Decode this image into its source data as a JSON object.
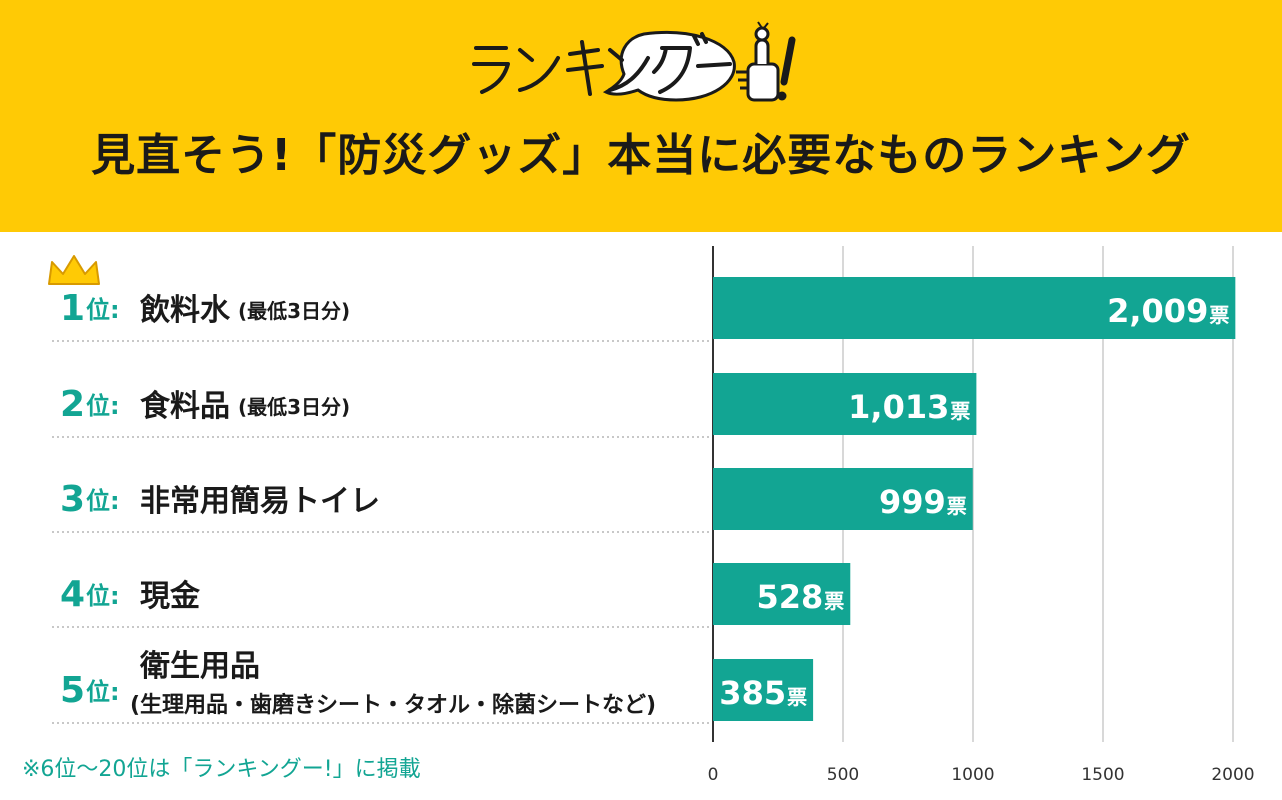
{
  "header": {
    "logo_text": "ランキングー!",
    "title": "見直そう!「防災グッズ」本当に必要なものランキング"
  },
  "colors": {
    "header_bg": "#FFCA05",
    "bar": "#12A593",
    "rank": "#12A593",
    "crown": "#FFCA05",
    "grid": "#cccccc"
  },
  "chart_data": {
    "type": "bar",
    "orientation": "horizontal",
    "categories": [
      "飲料水(最低3日分)",
      "食料品(最低3日分)",
      "非常用簡易トイレ",
      "現金",
      "衛生用品(生理用品・歯磨きシート・タオル・除菌シートなど)"
    ],
    "values": [
      2009,
      1013,
      999,
      528,
      385
    ],
    "value_labels": [
      "2,009",
      "1,013",
      "999",
      "528",
      "385"
    ],
    "value_unit": "票",
    "xlim": [
      0,
      2000
    ],
    "xticks": [
      "0",
      "500",
      "1000",
      "1500",
      "2000"
    ],
    "grid": true,
    "ranks": [
      {
        "num": "1",
        "suffix": "位:",
        "name": "飲料水",
        "note": "(最低3日分)"
      },
      {
        "num": "2",
        "suffix": "位:",
        "name": "食料品",
        "note": "(最低3日分)"
      },
      {
        "num": "3",
        "suffix": "位:",
        "name": "非常用簡易トイレ",
        "note": ""
      },
      {
        "num": "4",
        "suffix": "位:",
        "name": "現金",
        "note": ""
      },
      {
        "num": "5",
        "suffix": "位:",
        "name": "衛生用品",
        "note": "(生理用品・歯磨きシート・タオル・除菌シートなど)"
      }
    ]
  },
  "footnote": "※6位〜20位は「ランキングー!」に掲載"
}
